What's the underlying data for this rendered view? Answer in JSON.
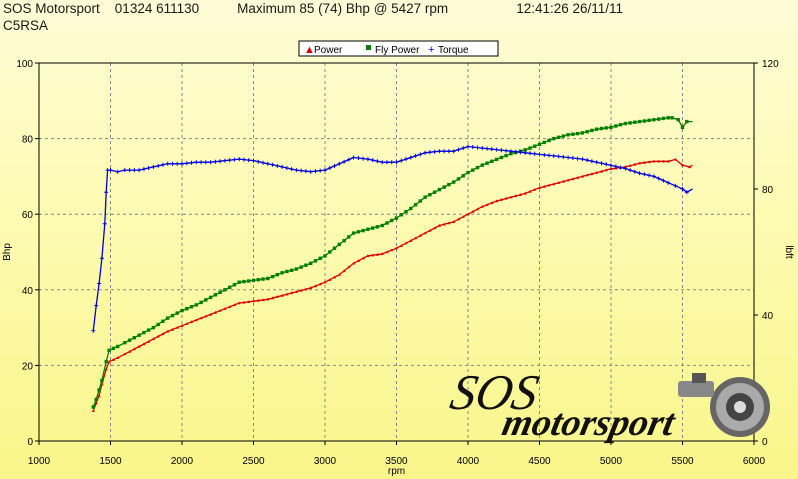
{
  "header": {
    "company": "SOS Motorsport",
    "phone": "01324 611130",
    "maximum": "Maximum 85 (74) Bhp @ 5427 rpm",
    "datetime": "12:41:26 26/11/11",
    "car": "C5RSA"
  },
  "logo": {
    "line1": "SOS",
    "line2": "motorsport"
  },
  "colors": {
    "power": "#e00000",
    "fly_power": "#008000",
    "torque": "#0000dd",
    "grid": "#888888"
  },
  "chart_data": {
    "type": "line",
    "title": "",
    "xlabel": "rpm",
    "ylabel": "Bhp",
    "y2label": "lbft",
    "xlim": [
      1000,
      6000
    ],
    "ylim": [
      0,
      100
    ],
    "y2lim": [
      0,
      120
    ],
    "x_ticks": [
      "1000",
      "1500",
      "2000",
      "2500",
      "3000",
      "3500",
      "4000",
      "4500",
      "5000",
      "5500",
      "6000"
    ],
    "y_ticks": [
      "0",
      "20",
      "40",
      "60",
      "80",
      "100"
    ],
    "y2_ticks": [
      "0",
      "40",
      "80",
      "120"
    ],
    "grid": true,
    "legend_position": "top-center",
    "series": [
      {
        "name": "Power",
        "axis": "left",
        "points": [
          [
            1380,
            8
          ],
          [
            1400,
            10
          ],
          [
            1420,
            12
          ],
          [
            1440,
            15
          ],
          [
            1470,
            19
          ],
          [
            1490,
            21
          ],
          [
            1550,
            22
          ],
          [
            1600,
            23
          ],
          [
            1700,
            25
          ],
          [
            1800,
            27
          ],
          [
            1900,
            29
          ],
          [
            2000,
            30.5
          ],
          [
            2100,
            32
          ],
          [
            2200,
            33.5
          ],
          [
            2300,
            35
          ],
          [
            2400,
            36.5
          ],
          [
            2500,
            37
          ],
          [
            2600,
            37.5
          ],
          [
            2700,
            38.5
          ],
          [
            2800,
            39.5
          ],
          [
            2900,
            40.5
          ],
          [
            3000,
            42
          ],
          [
            3100,
            44
          ],
          [
            3200,
            47
          ],
          [
            3300,
            49
          ],
          [
            3400,
            49.5
          ],
          [
            3500,
            51
          ],
          [
            3600,
            53
          ],
          [
            3700,
            55
          ],
          [
            3800,
            57
          ],
          [
            3900,
            58
          ],
          [
            4000,
            60
          ],
          [
            4100,
            62
          ],
          [
            4200,
            63.5
          ],
          [
            4300,
            64.5
          ],
          [
            4400,
            65.5
          ],
          [
            4500,
            67
          ],
          [
            4600,
            68
          ],
          [
            4700,
            69
          ],
          [
            4800,
            70
          ],
          [
            4900,
            71
          ],
          [
            5000,
            72
          ],
          [
            5100,
            72.5
          ],
          [
            5200,
            73.5
          ],
          [
            5300,
            74
          ],
          [
            5400,
            74
          ],
          [
            5450,
            74.5
          ],
          [
            5500,
            73
          ],
          [
            5550,
            72.5
          ],
          [
            5570,
            73
          ]
        ]
      },
      {
        "name": "Fly Power",
        "axis": "left",
        "points": [
          [
            1380,
            9
          ],
          [
            1400,
            11
          ],
          [
            1420,
            13.5
          ],
          [
            1440,
            16
          ],
          [
            1470,
            21
          ],
          [
            1490,
            24
          ],
          [
            1550,
            25
          ],
          [
            1600,
            26
          ],
          [
            1700,
            28
          ],
          [
            1800,
            30
          ],
          [
            1900,
            32.5
          ],
          [
            2000,
            34.5
          ],
          [
            2100,
            36
          ],
          [
            2200,
            38
          ],
          [
            2300,
            40
          ],
          [
            2400,
            42
          ],
          [
            2500,
            42.5
          ],
          [
            2600,
            43
          ],
          [
            2700,
            44.5
          ],
          [
            2800,
            45.5
          ],
          [
            2900,
            47
          ],
          [
            3000,
            49
          ],
          [
            3100,
            52
          ],
          [
            3200,
            55
          ],
          [
            3300,
            56
          ],
          [
            3400,
            57
          ],
          [
            3500,
            59
          ],
          [
            3600,
            61.5
          ],
          [
            3700,
            64.5
          ],
          [
            3800,
            66.5
          ],
          [
            3900,
            68.5
          ],
          [
            4000,
            71
          ],
          [
            4100,
            73
          ],
          [
            4200,
            74.5
          ],
          [
            4300,
            76
          ],
          [
            4400,
            77
          ],
          [
            4500,
            78.5
          ],
          [
            4600,
            80
          ],
          [
            4700,
            81
          ],
          [
            4800,
            81.5
          ],
          [
            4900,
            82.5
          ],
          [
            5000,
            83
          ],
          [
            5100,
            84
          ],
          [
            5200,
            84.5
          ],
          [
            5300,
            85
          ],
          [
            5400,
            85.5
          ],
          [
            5427,
            85.5
          ],
          [
            5470,
            85
          ],
          [
            5500,
            83
          ],
          [
            5530,
            84.5
          ],
          [
            5570,
            84.5
          ]
        ]
      },
      {
        "name": "Torque",
        "axis": "right",
        "points": [
          [
            1380,
            35
          ],
          [
            1400,
            43
          ],
          [
            1420,
            50
          ],
          [
            1440,
            58
          ],
          [
            1460,
            69
          ],
          [
            1470,
            79
          ],
          [
            1480,
            86
          ],
          [
            1500,
            86
          ],
          [
            1550,
            85.5
          ],
          [
            1600,
            86
          ],
          [
            1700,
            86
          ],
          [
            1800,
            87
          ],
          [
            1900,
            88
          ],
          [
            2000,
            88
          ],
          [
            2100,
            88.5
          ],
          [
            2200,
            88.5
          ],
          [
            2300,
            89
          ],
          [
            2400,
            89.5
          ],
          [
            2500,
            89
          ],
          [
            2600,
            88
          ],
          [
            2700,
            87
          ],
          [
            2800,
            86
          ],
          [
            2900,
            85.5
          ],
          [
            3000,
            86
          ],
          [
            3100,
            88
          ],
          [
            3200,
            90
          ],
          [
            3300,
            89.5
          ],
          [
            3400,
            88.5
          ],
          [
            3500,
            88.5
          ],
          [
            3600,
            90
          ],
          [
            3700,
            91.5
          ],
          [
            3800,
            92
          ],
          [
            3900,
            92
          ],
          [
            4000,
            93.5
          ],
          [
            4100,
            93
          ],
          [
            4200,
            92.5
          ],
          [
            4300,
            92
          ],
          [
            4400,
            91.5
          ],
          [
            4500,
            91
          ],
          [
            4600,
            90.5
          ],
          [
            4700,
            90
          ],
          [
            4800,
            89.5
          ],
          [
            4900,
            88.5
          ],
          [
            5000,
            87.5
          ],
          [
            5100,
            86.5
          ],
          [
            5200,
            85
          ],
          [
            5300,
            84
          ],
          [
            5400,
            82
          ],
          [
            5450,
            81
          ],
          [
            5500,
            80
          ],
          [
            5530,
            79
          ],
          [
            5570,
            80
          ]
        ]
      }
    ]
  }
}
